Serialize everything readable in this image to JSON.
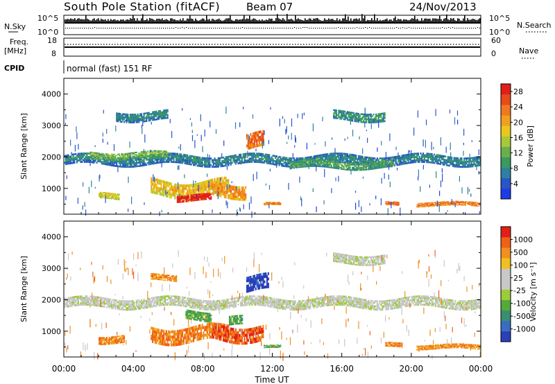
{
  "header": {
    "station": "South Pole Station (fitACF)",
    "beam": "Beam 07",
    "date": "24/Nov/2013"
  },
  "top_panels": {
    "nsky_label": "N.Sky",
    "nsky_top_tick": "10^5",
    "nsky_bottom_tick": "10^0",
    "nsearch_label": "N.Search",
    "freq_label_line1": "Freq.",
    "freq_label_line2": "[MHz]",
    "freq_ticks": [
      "18",
      "8"
    ],
    "nave_label": "Nave",
    "nave_ticks": [
      "60",
      "0"
    ],
    "cpid_label": "CPID",
    "cpid_value": "normal (fast) 151 RF"
  },
  "colors": {
    "power_scale": [
      "#1e3ce6",
      "#2a55c8",
      "#2f7fa0",
      "#3a9a60",
      "#6ab04a",
      "#a8c83a",
      "#e8c81e",
      "#f0a020",
      "#f07820",
      "#e84a1a",
      "#e02018"
    ],
    "velocity_scale": [
      "#2a3fb8",
      "#3a6cc0",
      "#3a8e70",
      "#55aa3c",
      "#9ccc3a",
      "#c8c8c8",
      "#c8c8c8",
      "#f0c020",
      "#f09020",
      "#f06018",
      "#e02018"
    ]
  },
  "chart_data": [
    {
      "type": "heatmap",
      "name": "power",
      "title": "",
      "xlabel": "",
      "ylabel": "Slant Range [km]",
      "xlim": [
        "00:00",
        "24:00"
      ],
      "ylim": [
        180,
        4500
      ],
      "yticks": [
        "1000",
        "2000",
        "3000",
        "4000"
      ],
      "colorbar": {
        "label": "Power [dB]",
        "range": [
          0,
          30
        ],
        "ticks": [
          "4",
          "8",
          "12",
          "16",
          "20",
          "24",
          "28"
        ]
      },
      "bands": [
        {
          "t0": 0.0,
          "t1": 24.0,
          "r_center": 1900,
          "r_width": 320,
          "level": 0.18
        },
        {
          "t0": 1.5,
          "t1": 6.0,
          "r_center": 2050,
          "r_width": 220,
          "level": 0.35
        },
        {
          "t0": 5.0,
          "t1": 9.5,
          "r_center": 1000,
          "r_width": 500,
          "level": 0.55
        },
        {
          "t0": 6.5,
          "t1": 8.5,
          "r_center": 700,
          "r_width": 220,
          "level": 0.9
        },
        {
          "t0": 8.5,
          "t1": 10.5,
          "r_center": 950,
          "r_width": 450,
          "level": 0.65
        },
        {
          "t0": 10.5,
          "t1": 11.5,
          "r_center": 2500,
          "r_width": 500,
          "level": 0.75
        },
        {
          "t0": 3.0,
          "t1": 6.0,
          "r_center": 3300,
          "r_width": 300,
          "level": 0.2
        },
        {
          "t0": 15.5,
          "t1": 18.5,
          "r_center": 3300,
          "r_width": 300,
          "level": 0.22
        },
        {
          "t0": 13.0,
          "t1": 19.0,
          "r_center": 1750,
          "r_width": 250,
          "level": 0.28
        },
        {
          "t0": 18.5,
          "t1": 19.3,
          "r_center": 500,
          "r_width": 120,
          "level": 0.75
        },
        {
          "t0": 20.3,
          "t1": 24.0,
          "r_center": 500,
          "r_width": 140,
          "level": 0.7
        },
        {
          "t0": 11.5,
          "t1": 12.5,
          "r_center": 500,
          "r_width": 100,
          "level": 0.7
        },
        {
          "t0": 2.0,
          "t1": 3.2,
          "r_center": 750,
          "r_width": 200,
          "level": 0.5
        }
      ]
    },
    {
      "type": "heatmap",
      "name": "velocity",
      "title": "",
      "xlabel": "Time UT",
      "ylabel": "Slant Range [km]",
      "xlim": [
        "00:00",
        "24:00"
      ],
      "ylim": [
        180,
        4500
      ],
      "xticks": [
        "00:00",
        "04:00",
        "08:00",
        "12:00",
        "16:00",
        "20:00",
        "00:00"
      ],
      "yticks": [
        "1000",
        "2000",
        "3000",
        "4000"
      ],
      "colorbar": {
        "label": "Velocity [m s⁻¹]",
        "range": [
          -1250,
          1250
        ],
        "ticks": [
          "1000",
          "500",
          "100",
          "25",
          "-25",
          "-100",
          "-500",
          "-1000"
        ]
      },
      "bands": [
        {
          "t0": 0.0,
          "t1": 24.0,
          "r_center": 1900,
          "r_width": 320,
          "level": 0.5
        },
        {
          "t0": 15.5,
          "t1": 18.5,
          "r_center": 3300,
          "r_width": 300,
          "level": 0.5
        },
        {
          "t0": 2.0,
          "t1": 3.5,
          "r_center": 750,
          "r_width": 250,
          "level": 0.78
        },
        {
          "t0": 5.0,
          "t1": 9.5,
          "r_center": 900,
          "r_width": 500,
          "level": 0.8
        },
        {
          "t0": 8.5,
          "t1": 11.5,
          "r_center": 950,
          "r_width": 500,
          "level": 0.88
        },
        {
          "t0": 10.5,
          "t1": 11.8,
          "r_center": 2500,
          "r_width": 500,
          "level": 0.05
        },
        {
          "t0": 7.0,
          "t1": 8.5,
          "r_center": 1500,
          "r_width": 300,
          "level": 0.3
        },
        {
          "t0": 9.5,
          "t1": 10.3,
          "r_center": 1300,
          "r_width": 300,
          "level": 0.3
        },
        {
          "t0": 5.0,
          "t1": 6.5,
          "r_center": 2700,
          "r_width": 200,
          "level": 0.78
        },
        {
          "t0": 18.5,
          "t1": 19.5,
          "r_center": 550,
          "r_width": 150,
          "level": 0.8
        },
        {
          "t0": 20.3,
          "t1": 24.0,
          "r_center": 500,
          "r_width": 150,
          "level": 0.78
        },
        {
          "t0": 11.5,
          "t1": 12.5,
          "r_center": 500,
          "r_width": 100,
          "level": 0.3
        }
      ]
    }
  ]
}
